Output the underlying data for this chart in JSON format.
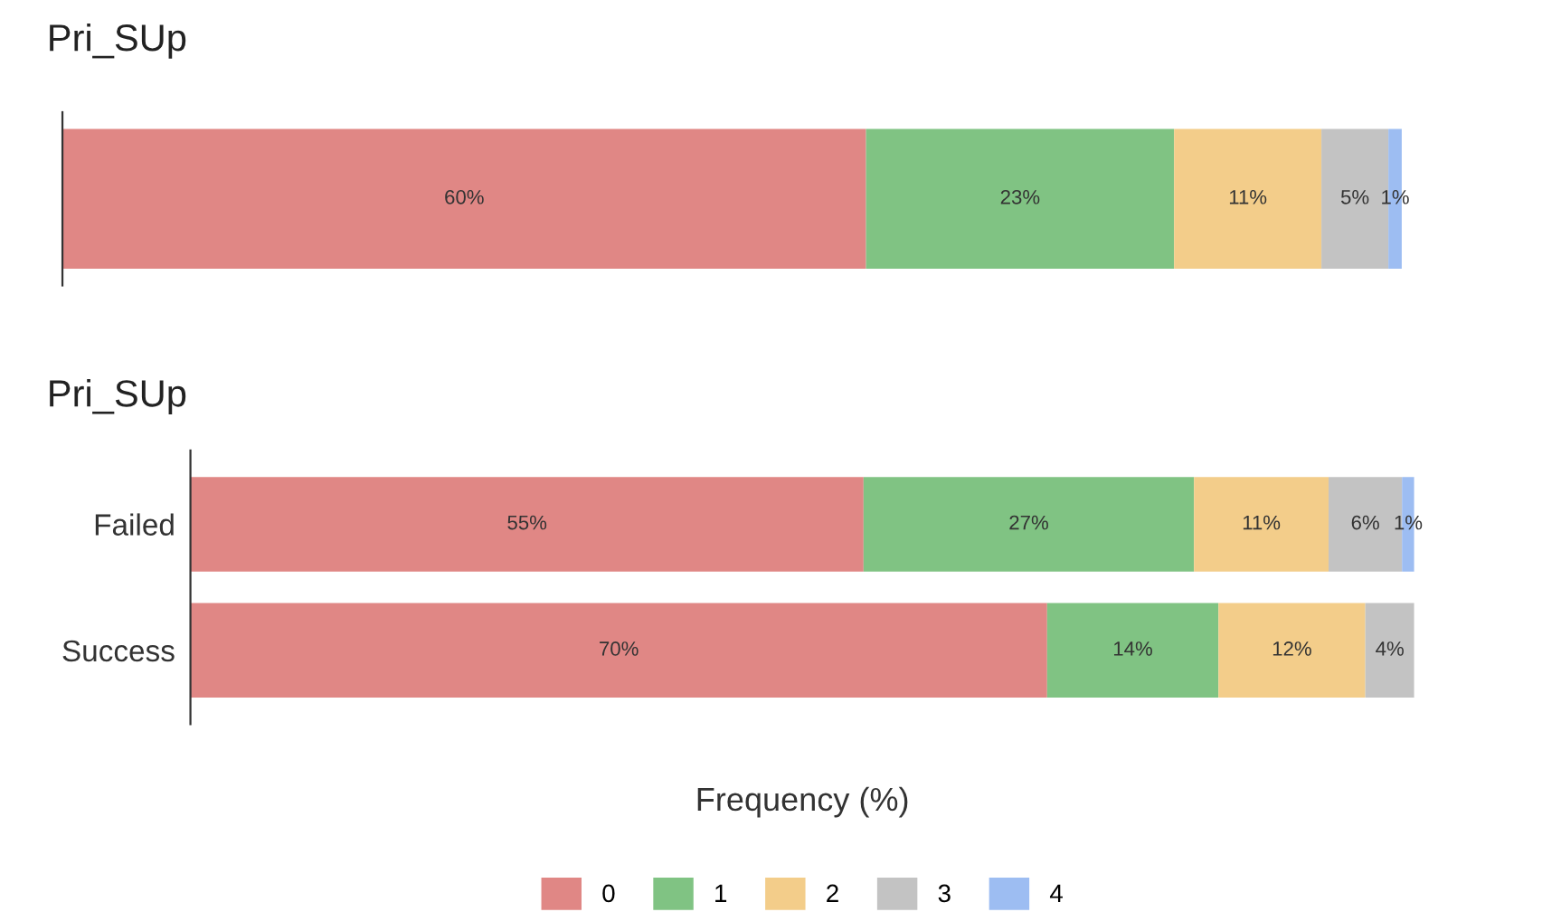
{
  "chart_data": [
    {
      "type": "bar",
      "title": "Pri_SUp",
      "orientation": "horizontal",
      "stacked": true,
      "categories": [
        null
      ],
      "legend": false,
      "series": [
        {
          "color": "#e08785",
          "values": [
            60
          ],
          "value_labels": [
            "60%"
          ]
        },
        {
          "color": "#80c383",
          "values": [
            23
          ],
          "value_labels": [
            "23%"
          ]
        },
        {
          "color": "#f3cd8a",
          "values": [
            11
          ],
          "value_labels": [
            "11%"
          ]
        },
        {
          "color": "#c3c3c3",
          "values": [
            5
          ],
          "value_labels": [
            "5%"
          ]
        },
        {
          "color": "#9dbdf2",
          "values": [
            1
          ],
          "value_labels": [
            "1%"
          ]
        }
      ]
    },
    {
      "type": "bar",
      "title": "Pri_SUp",
      "orientation": "horizontal",
      "stacked": true,
      "categories": [
        "Failed",
        "Success"
      ],
      "xlabel": "Frequency (%)",
      "legend": "bottom",
      "series": [
        {
          "name": "0",
          "color": "#e08785",
          "values": [
            55,
            70
          ],
          "value_labels": [
            "55%",
            "70%"
          ]
        },
        {
          "name": "1",
          "color": "#80c383",
          "values": [
            27,
            14
          ],
          "value_labels": [
            "27%",
            "14%"
          ]
        },
        {
          "name": "2",
          "color": "#f3cd8a",
          "values": [
            11,
            12
          ],
          "value_labels": [
            "11%",
            "12%"
          ]
        },
        {
          "name": "3",
          "color": "#c3c3c3",
          "values": [
            6,
            4
          ],
          "value_labels": [
            "6%",
            "4%"
          ]
        },
        {
          "name": "4",
          "color": "#9dbdf2",
          "values": [
            1,
            null
          ],
          "value_labels": [
            "1%",
            null
          ]
        }
      ]
    }
  ]
}
